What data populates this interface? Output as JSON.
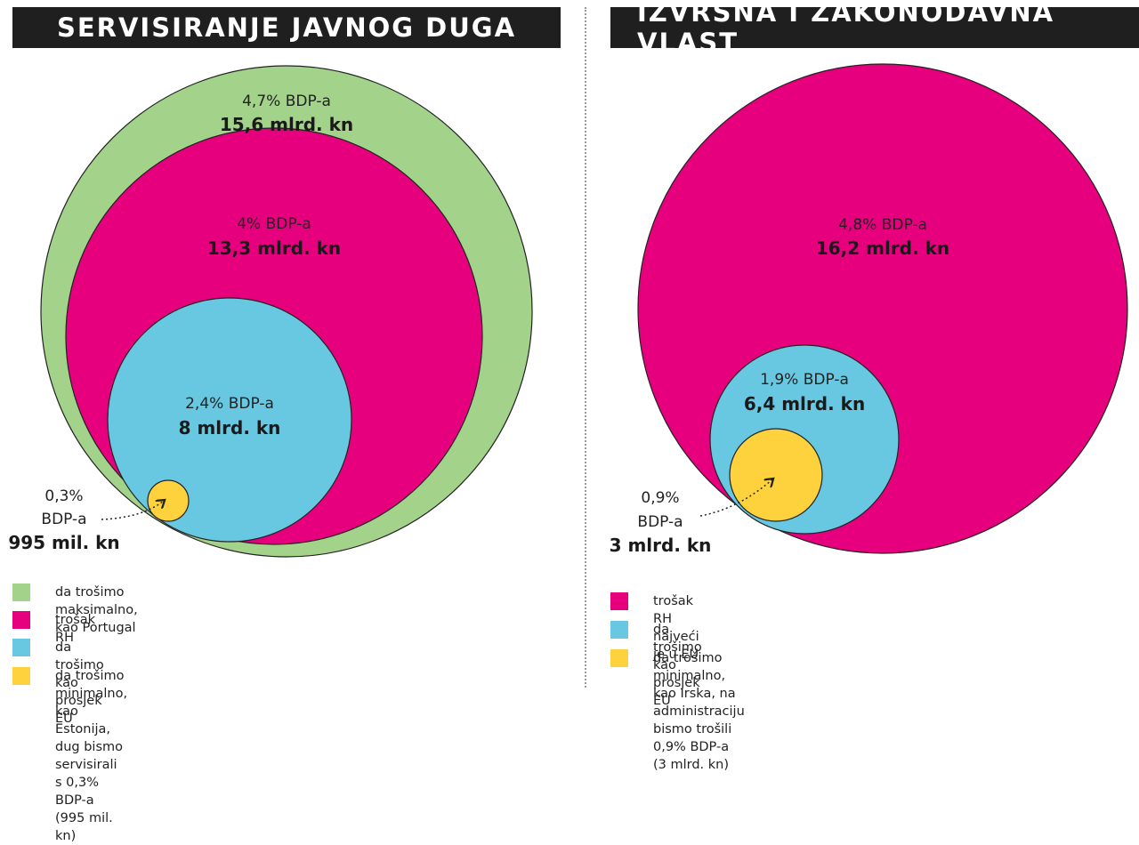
{
  "panels": [
    {
      "title": "SERVISIRANJE JAVNOG DUGA"
    },
    {
      "title": "IZVRŠNA I ZAKONODAVNA VLAST"
    }
  ],
  "chart_data": [
    {
      "type": "nested-circles",
      "title": "SERVISIRANJE JAVNOG DUGA",
      "series": [
        {
          "pct_label": "4,7% BDP-a",
          "value_label": "15,6 mlrd. kn",
          "value_bn_kn": 15.6,
          "gdp_pct": 4.7,
          "color": "#a3d38a"
        },
        {
          "pct_label": "4% BDP-a",
          "value_label": "13,3 mlrd. kn",
          "value_bn_kn": 13.3,
          "gdp_pct": 4.0,
          "color": "#e6007e"
        },
        {
          "pct_label": "2,4% BDP-a",
          "value_label": "8 mlrd. kn",
          "value_bn_kn": 8.0,
          "gdp_pct": 2.4,
          "color": "#68c8e2"
        },
        {
          "pct_label_lines": [
            "0,3%",
            "BDP-a"
          ],
          "value_label": "995 mil. kn",
          "value_bn_kn": 0.995,
          "gdp_pct": 0.3,
          "color": "#fdd23c"
        }
      ],
      "legend": [
        {
          "label": "da trošimo maksimalno, kao Portugal",
          "color": "#a3d38a"
        },
        {
          "label": "trošak RH",
          "color": "#e6007e"
        },
        {
          "label": "da trošimo kao prosjek EU",
          "color": "#68c8e2"
        },
        {
          "label": "da trošimo minimalno, kao Estonija, dug bismo servisirali s 0,3% BDP-a (995 mil. kn)",
          "color": "#fdd23c"
        }
      ]
    },
    {
      "type": "nested-circles",
      "title": "IZVRŠNA I ZAKONODAVNA VLAST",
      "series": [
        {
          "pct_label": "4,8% BDP-a",
          "value_label": "16,2 mlrd. kn",
          "value_bn_kn": 16.2,
          "gdp_pct": 4.8,
          "color": "#e6007e"
        },
        {
          "pct_label": "1,9% BDP-a",
          "value_label": "6,4 mlrd. kn",
          "value_bn_kn": 6.4,
          "gdp_pct": 1.9,
          "color": "#68c8e2"
        },
        {
          "pct_label_lines": [
            "0,9%",
            "BDP-a"
          ],
          "value_label": "3 mlrd. kn",
          "value_bn_kn": 3.0,
          "gdp_pct": 0.9,
          "color": "#fdd23c"
        }
      ],
      "legend": [
        {
          "label": "trošak RH najveći je u EU",
          "color": "#e6007e"
        },
        {
          "label": "da trošimo kao prosjek EU",
          "color": "#68c8e2"
        },
        {
          "label_lines": [
            "da trošimo minimalno, kao Irska, na administraciju bismo trošili 0,9% BDP-a",
            "(3 mlrd. kn)"
          ],
          "color": "#fdd23c"
        }
      ]
    }
  ]
}
